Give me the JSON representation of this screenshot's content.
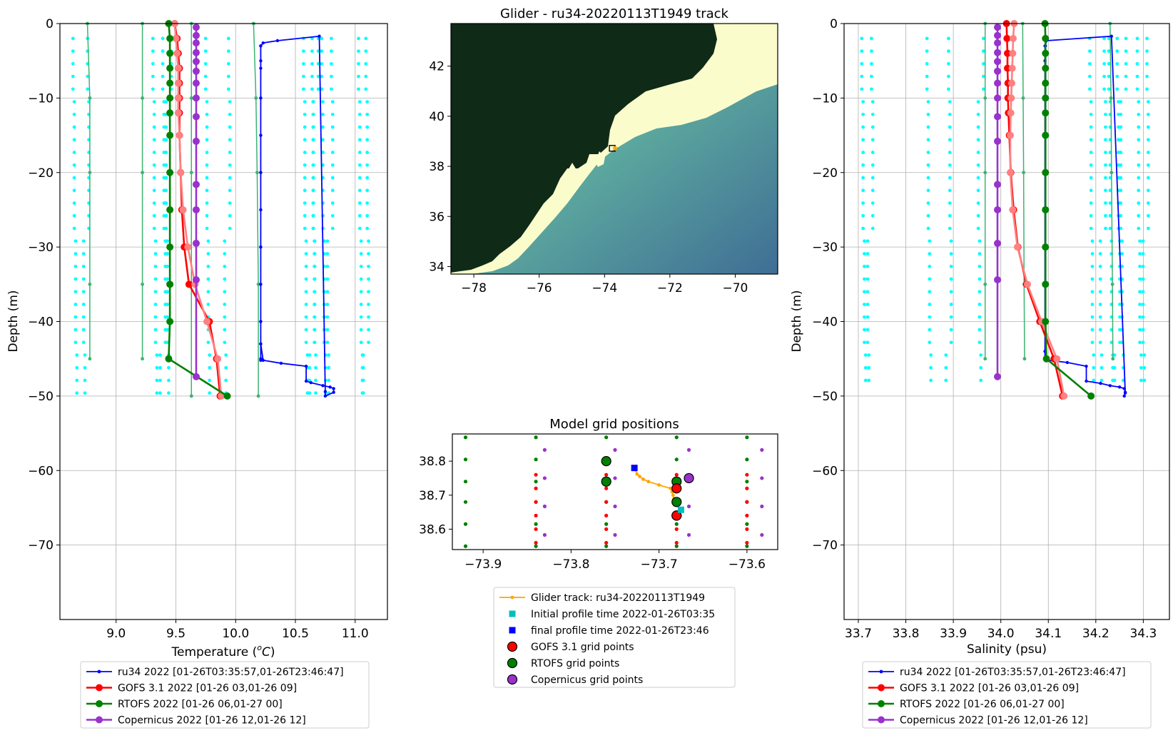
{
  "chart_data": [
    {
      "id": "temperature",
      "type": "line",
      "xlabel_text": "Temperature (",
      "xlabel_unit_sup": "o",
      "xlabel_unit": "C",
      "xlabel_tail": ")",
      "ylabel": "Depth (m)",
      "xlim": [
        8.53,
        11.27
      ],
      "ylim": [
        -80,
        0
      ],
      "xticks": [
        9.0,
        9.5,
        10.0,
        10.5,
        11.0
      ],
      "xtick_labels": [
        "9.0",
        "9.5",
        "10.0",
        "10.5",
        "11.0"
      ],
      "yticks": [
        0,
        -10,
        -20,
        -30,
        -40,
        -50,
        -60,
        -70
      ],
      "ytick_labels": [
        "0",
        "−10",
        "−20",
        "−30",
        "−40",
        "−50",
        "−60",
        "−70"
      ],
      "grid": true,
      "legend_position": "below",
      "legend": [
        {
          "label": "ru34 2022 [01-26T03:35:57,01-26T23:46:47]",
          "color": "#0000ff",
          "marker": "small-dot"
        },
        {
          "label": "GOFS 3.1 2022 [01-26 03,01-26 09]",
          "color": "#ff0000",
          "marker": "dot"
        },
        {
          "label": "RTOFS 2022 [01-26 06,01-27 00]",
          "color": "#008000",
          "marker": "dot"
        },
        {
          "label": "Copernicus 2022 [01-26 12,01-26 12]",
          "color": "#9932cc",
          "marker": "dot"
        }
      ],
      "cyan_profiles_x": [
        8.65,
        8.75,
        9.33,
        9.39,
        9.44,
        9.76,
        9.93,
        10.59,
        10.64,
        10.67,
        10.73,
        10.79,
        11.05,
        11.09
      ],
      "cyan_depth_range": [
        -2,
        -50
      ],
      "seagreen_profiles": [
        {
          "x": [
            8.76,
            8.78,
            8.78,
            8.78,
            8.78
          ],
          "y": [
            0,
            -10,
            -20,
            -35,
            -45
          ]
        },
        {
          "x": [
            9.22,
            9.22,
            9.22,
            9.22,
            9.22
          ],
          "y": [
            0,
            -10,
            -20,
            -35,
            -45
          ]
        },
        {
          "x": [
            9.63,
            9.63,
            9.63,
            9.63,
            9.63
          ],
          "y": [
            0,
            -10,
            -20,
            -35,
            -50
          ]
        },
        {
          "x": [
            10.15,
            10.17,
            10.18,
            10.19,
            10.19
          ],
          "y": [
            0,
            -10,
            -20,
            -35,
            -50
          ]
        }
      ],
      "series": [
        {
          "name": "ru34",
          "color": "#0000ff",
          "x": [
            10.21,
            10.21,
            10.21,
            10.21,
            10.21,
            10.21,
            10.21,
            10.21,
            10.21,
            10.21,
            10.23,
            10.38,
            10.59,
            10.59,
            10.63,
            10.73,
            10.79,
            10.82,
            10.82,
            10.75,
            10.75,
            10.7,
            10.35,
            10.23,
            10.21,
            10.21,
            10.21,
            10.21,
            10.21,
            10.21,
            10.21,
            10.21,
            10.21
          ],
          "y": [
            -3,
            -6,
            -10,
            -15,
            -20,
            -25,
            -30,
            -35,
            -40,
            -43,
            -45.2,
            -45.6,
            -46,
            -48,
            -48.2,
            -48.6,
            -48.8,
            -49,
            -49.5,
            -50,
            -49.4,
            -1.7,
            -2.3,
            -2.6,
            -3,
            -5,
            -10,
            -20,
            -30,
            -40,
            -43,
            -45,
            -45.2
          ]
        },
        {
          "name": "GOFS 3.1",
          "color": "#ff0000",
          "x": [
            9.49,
            9.51,
            9.52,
            9.53,
            9.53,
            9.53,
            9.53,
            9.53,
            9.54,
            9.55,
            9.57,
            9.61,
            9.78,
            9.84,
            9.87
          ],
          "y": [
            0,
            -2,
            -4,
            -6,
            -8,
            -10,
            -12,
            -15,
            -20,
            -25,
            -30,
            -35,
            -40,
            -45,
            -50
          ]
        },
        {
          "name": "GOFS 3.1 (b)",
          "color": "#ff8080",
          "x": [
            9.49,
            9.5,
            9.51,
            9.52,
            9.52,
            9.52,
            9.52,
            9.53,
            9.54,
            9.56,
            9.6,
            9.66,
            9.76,
            9.85,
            9.88
          ],
          "y": [
            0,
            -2,
            -4,
            -6,
            -8,
            -10,
            -12,
            -15,
            -20,
            -25,
            -30,
            -35,
            -40,
            -45,
            -50
          ]
        },
        {
          "name": "RTOFS",
          "color": "#008000",
          "x": [
            9.44,
            9.45,
            9.45,
            9.45,
            9.45,
            9.45,
            9.45,
            9.45,
            9.45,
            9.45,
            9.45,
            9.45,
            9.45,
            9.44,
            9.93
          ],
          "y": [
            0,
            -2,
            -4,
            -6,
            -8,
            -10,
            -12,
            -15,
            -20,
            -25,
            -30,
            -35,
            -40,
            -45,
            -50
          ]
        },
        {
          "name": "Copernicus",
          "color": "#9932cc",
          "x": [
            9.67,
            9.67,
            9.67,
            9.67,
            9.67,
            9.67,
            9.67,
            9.67,
            9.67,
            9.67,
            9.67,
            9.67,
            9.67,
            9.67,
            9.67
          ],
          "y": [
            -0.5,
            -1.6,
            -2.6,
            -3.9,
            -5.1,
            -6.4,
            -8,
            -10,
            -12.5,
            -15.8,
            -21.6,
            -25,
            -29.5,
            -34.4,
            -47.4
          ]
        }
      ]
    },
    {
      "id": "track_map",
      "type": "map",
      "title": "Glider - ru34-20220113T1949 track",
      "xlim": [
        -78.7,
        -68.7
      ],
      "ylim": [
        33.7,
        43.7
      ],
      "xticks": [
        -78,
        -76,
        -74,
        -72,
        -70
      ],
      "xtick_labels": [
        "−78",
        "−76",
        "−74",
        "−72",
        "−70"
      ],
      "yticks": [
        34,
        36,
        38,
        40,
        42
      ],
      "ytick_labels": [
        "34",
        "36",
        "38",
        "40",
        "42"
      ],
      "marker_lon": -73.72,
      "marker_lat": 38.72,
      "colors": {
        "land": "#0f2a17",
        "shelf": "#fbfccc",
        "deep": "#457b9c"
      }
    },
    {
      "id": "grid_positions",
      "type": "scatter",
      "title": "Model grid positions",
      "xlim": [
        -73.935,
        -73.565
      ],
      "ylim": [
        38.54,
        38.88
      ],
      "xticks": [
        -73.9,
        -73.8,
        -73.7,
        -73.6
      ],
      "xtick_labels": [
        "−73.9",
        "−73.8",
        "−73.7",
        "−73.6"
      ],
      "yticks": [
        38.6,
        38.7,
        38.8
      ],
      "ytick_labels": [
        "38.6",
        "38.7",
        "38.8"
      ],
      "rtofs_small_lons": [
        -73.92,
        -73.84,
        -73.76,
        -73.68,
        -73.6
      ],
      "rtofs_small_lats": [
        38.55,
        38.615,
        38.68,
        38.74,
        38.805,
        38.87
      ],
      "gofs_small_lons": [
        -73.84,
        -73.76,
        -73.68,
        -73.6
      ],
      "gofs_small_lats": [
        38.56,
        38.6,
        38.64,
        38.68,
        38.72,
        38.76
      ],
      "cop_small_lons": [
        -73.83,
        -73.75,
        -73.666,
        -73.583
      ],
      "cop_small_lats": [
        38.583,
        38.667,
        38.75,
        38.833
      ],
      "glider_track": {
        "x": [
          -73.727,
          -73.725,
          -73.722,
          -73.718,
          -73.712,
          -73.7,
          -73.687,
          -73.685,
          -73.684,
          -73.683,
          -73.682
        ],
        "y": [
          38.775,
          38.762,
          38.755,
          38.747,
          38.74,
          38.73,
          38.72,
          38.71,
          38.7,
          38.69,
          38.675
        ]
      },
      "initial_point": {
        "x": -73.675,
        "y": 38.657
      },
      "final_point": {
        "x": -73.728,
        "y": 38.78
      },
      "gofs_big": [
        [
          -73.68,
          38.72
        ],
        [
          -73.68,
          38.64
        ]
      ],
      "rtofs_big": [
        [
          -73.76,
          38.8
        ],
        [
          -73.76,
          38.74
        ],
        [
          -73.68,
          38.74
        ],
        [
          -73.68,
          38.68
        ],
        [
          -73.68,
          38.64
        ]
      ],
      "cop_big": [
        [
          -73.666,
          38.75
        ]
      ],
      "legend": [
        {
          "label": "Glider track: ru34-20220113T1949",
          "color": "#ffa500",
          "marker": "line-dot"
        },
        {
          "label": "Initial profile time 2022-01-26T03:35",
          "color": "#00bfbf",
          "marker": "square"
        },
        {
          "label": "final profile time 2022-01-26T23:46",
          "color": "#0000ff",
          "marker": "square"
        },
        {
          "label": "GOFS 3.1 grid points",
          "color": "#ff0000",
          "marker": "circle"
        },
        {
          "label": "RTOFS grid points",
          "color": "#008000",
          "marker": "circle"
        },
        {
          "label": "Copernicus grid points",
          "color": "#9932cc",
          "marker": "circle"
        }
      ]
    },
    {
      "id": "salinity",
      "type": "line",
      "xlabel": "Salinity (psu)",
      "ylabel": "Depth (m)",
      "xlim": [
        33.67,
        34.355
      ],
      "ylim": [
        -80,
        0
      ],
      "xticks": [
        33.7,
        33.8,
        33.9,
        34.0,
        34.1,
        34.2,
        34.3
      ],
      "xtick_labels": [
        "33.7",
        "33.8",
        "33.9",
        "34.0",
        "34.1",
        "34.2",
        "34.3"
      ],
      "yticks": [
        0,
        -10,
        -20,
        -30,
        -40,
        -50,
        -60,
        -70
      ],
      "ytick_labels": [
        "0",
        "−10",
        "−20",
        "−30",
        "−40",
        "−50",
        "−60",
        "−70"
      ],
      "grid": true,
      "legend_position": "below",
      "legend": [
        {
          "label": "ru34 2022 [01-26T03:35:57,01-26T23:46:47]",
          "color": "#0000ff",
          "marker": "small-dot"
        },
        {
          "label": "GOFS 3.1 2022 [01-26 03,01-26 09]",
          "color": "#ff0000",
          "marker": "dot"
        },
        {
          "label": "RTOFS 2022 [01-26 06,01-27 00]",
          "color": "#008000",
          "marker": "dot"
        },
        {
          "label": "Copernicus 2022 [01-26 12,01-26 12]",
          "color": "#9932cc",
          "marker": "dot"
        }
      ],
      "cyan_profiles_x": [
        33.71,
        33.725,
        33.85,
        33.89,
        33.958,
        34.19,
        34.215,
        34.233,
        34.245,
        34.258,
        34.29,
        34.305
      ],
      "cyan_depth_range": [
        -2,
        -49
      ],
      "seagreen_profiles": [
        {
          "x": [
            33.967,
            33.967,
            33.967,
            33.967,
            33.967
          ],
          "y": [
            0,
            -10,
            -20,
            -35,
            -45
          ]
        },
        {
          "x": [
            34.046,
            34.047,
            34.048,
            34.049,
            34.05
          ],
          "y": [
            0,
            -10,
            -20,
            -35,
            -45
          ]
        },
        {
          "x": [
            34.23,
            34.232,
            34.233,
            34.235,
            34.236
          ],
          "y": [
            0,
            -10,
            -20,
            -35,
            -45
          ]
        }
      ],
      "series": [
        {
          "name": "ru34",
          "color": "#0000ff",
          "x": [
            34.093,
            34.093,
            34.093,
            34.093,
            34.093,
            34.093,
            34.093,
            34.093,
            34.093,
            34.093,
            34.1,
            34.14,
            34.18,
            34.18,
            34.21,
            34.23,
            34.25,
            34.26,
            34.262,
            34.26,
            34.262,
            34.233,
            34.096,
            34.094,
            34.093,
            34.093,
            34.093,
            34.093,
            34.093,
            34.093,
            34.093
          ],
          "y": [
            -3,
            -6,
            -10,
            -15,
            -20,
            -25,
            -30,
            -35,
            -40,
            -44,
            -45.2,
            -45.5,
            -46,
            -48,
            -48.3,
            -48.6,
            -48.8,
            -49,
            -49.5,
            -50,
            -49.6,
            -1.7,
            -2.3,
            -3,
            -5,
            -10,
            -20,
            -30,
            -40,
            -44,
            -45
          ]
        },
        {
          "name": "GOFS 3.1",
          "color": "#ff0000",
          "x": [
            34.012,
            34.013,
            34.014,
            34.014,
            34.015,
            34.015,
            34.016,
            34.018,
            34.021,
            34.027,
            34.036,
            34.054,
            34.082,
            34.112,
            34.13
          ],
          "y": [
            0,
            -2,
            -4,
            -6,
            -8,
            -10,
            -12,
            -15,
            -20,
            -25,
            -30,
            -35,
            -40,
            -45,
            -50
          ]
        },
        {
          "name": "GOFS 3.1 (b)",
          "color": "#ff8080",
          "x": [
            34.028,
            34.026,
            34.025,
            34.024,
            34.023,
            34.022,
            34.021,
            34.02,
            34.02,
            34.025,
            34.035,
            34.056,
            34.086,
            34.118,
            34.133
          ],
          "y": [
            0,
            -2,
            -4,
            -6,
            -8,
            -10,
            -12,
            -15,
            -20,
            -25,
            -30,
            -35,
            -40,
            -45,
            -50
          ]
        },
        {
          "name": "RTOFS",
          "color": "#008000",
          "x": [
            34.093,
            34.094,
            34.094,
            34.094,
            34.094,
            34.094,
            34.094,
            34.094,
            34.094,
            34.094,
            34.094,
            34.094,
            34.094,
            34.096,
            34.19
          ],
          "y": [
            0,
            -2,
            -4,
            -6,
            -8,
            -10,
            -12,
            -15,
            -20,
            -25,
            -30,
            -35,
            -40,
            -45,
            -50
          ]
        },
        {
          "name": "Copernicus",
          "color": "#9932cc",
          "x": [
            33.993,
            33.993,
            33.993,
            33.993,
            33.993,
            33.993,
            33.993,
            33.993,
            33.993,
            33.993,
            33.993,
            33.993,
            33.993,
            33.993,
            33.993
          ],
          "y": [
            -0.5,
            -1.6,
            -2.6,
            -3.9,
            -5.1,
            -6.4,
            -8,
            -10,
            -12.5,
            -15.8,
            -21.6,
            -25,
            -29.5,
            -34.4,
            -47.4
          ]
        }
      ]
    }
  ]
}
